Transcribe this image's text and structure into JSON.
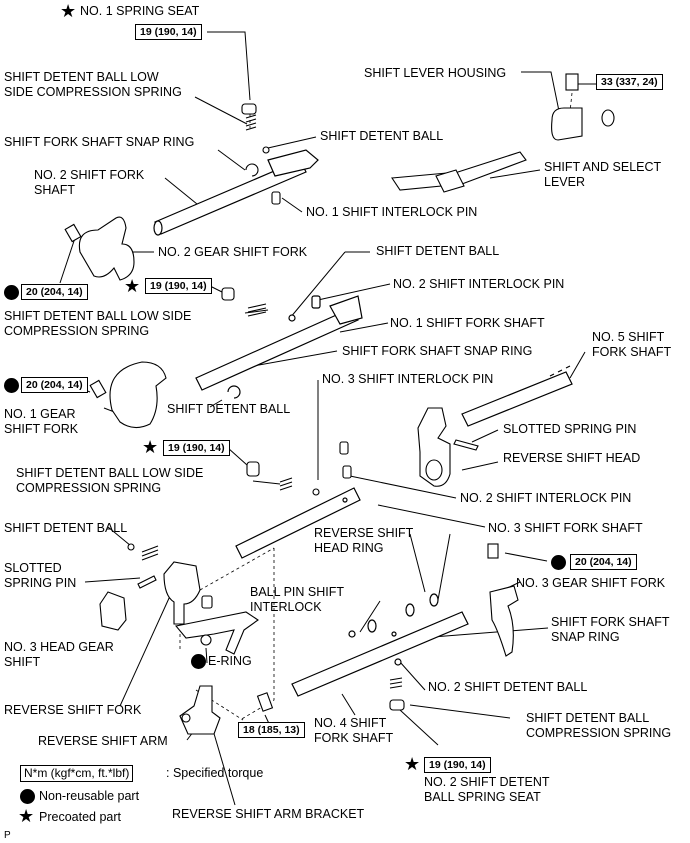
{
  "labels": {
    "spring_seat_1": "NO. 1 SPRING SEAT",
    "detent_spring_low_1": "SHIFT DETENT BALL LOW\nSIDE COMPRESSION SPRING",
    "snap_ring_1": "SHIFT FORK SHAFT SNAP RING",
    "detent_ball_1": "SHIFT DETENT BALL",
    "no2_fork_shaft": "NO. 2 SHIFT FORK\nSHAFT",
    "interlock_pin_1": "NO. 1 SHIFT INTERLOCK PIN",
    "lever_housing": "SHIFT LEVER HOUSING",
    "select_lever": "SHIFT AND SELECT\nLEVER",
    "no2_gear_fork": "NO. 2 GEAR SHIFT FORK",
    "detent_ball_2": "SHIFT DETENT BALL",
    "interlock_pin_2": "NO. 2 SHIFT INTERLOCK PIN",
    "detent_spring_low_2": "SHIFT DETENT BALL LOW SIDE\nCOMPRESSION SPRING",
    "no1_fork_shaft": "NO. 1 SHIFT FORK SHAFT",
    "snap_ring_2": "SHIFT FORK SHAFT SNAP RING",
    "no5_fork_shaft": "NO. 5 SHIFT\nFORK SHAFT",
    "interlock_pin_3": "NO. 3 SHIFT INTERLOCK PIN",
    "detent_ball_3": "SHIFT DETENT BALL",
    "no1_gear_fork": "NO. 1 GEAR\nSHIFT FORK",
    "slotted_pin_1": "SLOTTED SPRING PIN",
    "reverse_head": "REVERSE SHIFT HEAD",
    "detent_spring_low_3": "SHIFT DETENT BALL LOW SIDE\nCOMPRESSION SPRING",
    "interlock_pin_4": "NO. 2 SHIFT INTERLOCK PIN",
    "detent_ball_4": "SHIFT DETENT BALL",
    "no3_fork_shaft": "NO. 3 SHIFT FORK SHAFT",
    "head_ring": "REVERSE SHIFT\nHEAD RING",
    "slotted_pin_2": "SLOTTED\nSPRING PIN",
    "no3_gear_fork": "NO. 3 GEAR SHIFT FORK",
    "ball_pin_interlock": "BALL PIN SHIFT\nINTERLOCK",
    "no3_head_gear": "NO. 3 HEAD GEAR\nSHIFT",
    "snap_ring_3": "SHIFT FORK SHAFT\nSNAP RING",
    "e_ring": "E-RING",
    "no2_detent_ball": "NO. 2 SHIFT DETENT BALL",
    "reverse_fork": "REVERSE SHIFT FORK",
    "detent_spring_comp": "SHIFT DETENT BALL\nCOMPRESSION SPRING",
    "reverse_arm": "REVERSE SHIFT ARM",
    "no4_fork_shaft": "NO. 4 SHIFT\nFORK SHAFT",
    "no2_spring_seat": "NO. 2 SHIFT DETENT\nBALL SPRING SEAT",
    "arm_bracket": "REVERSE SHIFT ARM BRACKET",
    "page_mark": "P"
  },
  "torques": {
    "t1": "19 (190, 14)",
    "t2": "33 (337, 24)",
    "t3": "20 (204, 14)",
    "t4": "19 (190, 14)",
    "t5": "20 (204, 14)",
    "t6": "19 (190, 14)",
    "t7": "20 (204, 14)",
    "t8": "18 (185, 13)",
    "t9": "19 (190, 14)"
  },
  "legend": {
    "torque_box": "N*m (kgf*cm, ft.*lbf)",
    "torque_text": ": Specified torque",
    "nonreusable": "Non-reusable part",
    "precoated": "Precoated part"
  },
  "symbols": {
    "star": "★"
  }
}
